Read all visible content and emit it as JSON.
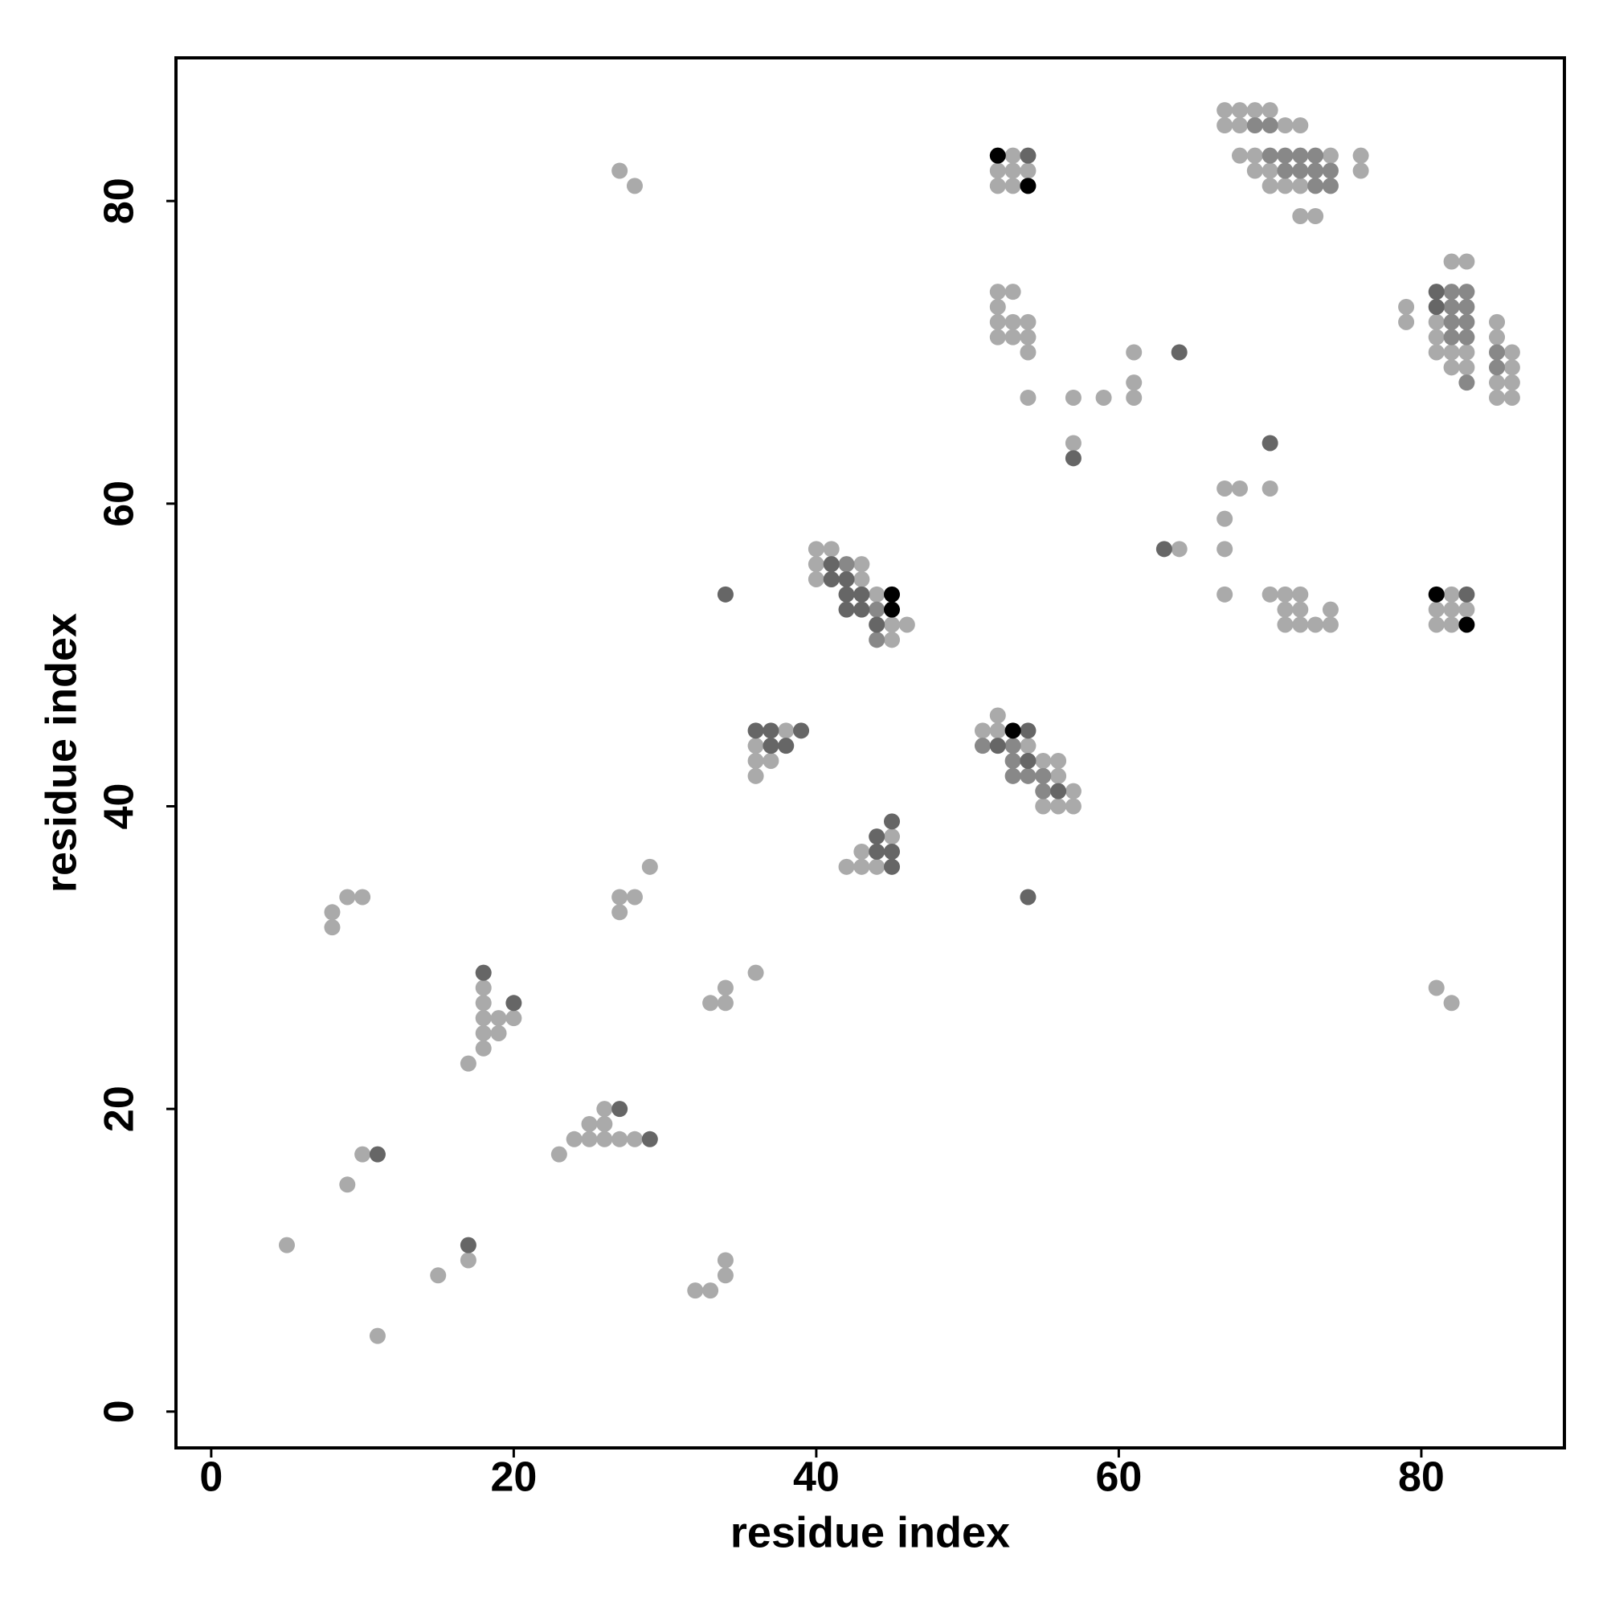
{
  "chart_data": {
    "type": "scatter",
    "x_label": "residue index",
    "y_label": "residue index",
    "xlim": [
      -2.33,
      89.46
    ],
    "ylim": [
      -2.4,
      89.46
    ],
    "xticks": [
      0,
      20,
      40,
      60,
      80
    ],
    "yticks": [
      0,
      20,
      40,
      60,
      80
    ],
    "series": [
      {
        "color": "#aaaaaa",
        "x": [
          5,
          11,
          15,
          17,
          9,
          10,
          8,
          8,
          9,
          10,
          17,
          18,
          18,
          18,
          19,
          18,
          19,
          18,
          20,
          23,
          24,
          25,
          26,
          27,
          28,
          25,
          26,
          26,
          27,
          28,
          27,
          28,
          27,
          29,
          33,
          34,
          34,
          36,
          32,
          33,
          34,
          34,
          38,
          36,
          36,
          37,
          36,
          40,
          41,
          40,
          43,
          40,
          43,
          44,
          45,
          46,
          45,
          45,
          42,
          43,
          43,
          44,
          52,
          51,
          52,
          54,
          55,
          56,
          56,
          57,
          55,
          56,
          57,
          53,
          52,
          53,
          54,
          52,
          53,
          52,
          53,
          52,
          52,
          53,
          54,
          52,
          53,
          54,
          54,
          54,
          57,
          59,
          61,
          61,
          61,
          57,
          64,
          67,
          68,
          70,
          67,
          67,
          67,
          70,
          71,
          72,
          71,
          72,
          74,
          71,
          72,
          73,
          74,
          67,
          68,
          69,
          70,
          67,
          68,
          71,
          72,
          68,
          69,
          74,
          76,
          69,
          70,
          76,
          70,
          71,
          72,
          72,
          73,
          82,
          83,
          79,
          79,
          81,
          85,
          81,
          85,
          81,
          82,
          83,
          86,
          82,
          83,
          86,
          85,
          86,
          85,
          86,
          82,
          81,
          82,
          83,
          81,
          82,
          81,
          82
        ],
        "y": [
          11,
          5,
          9,
          10,
          15,
          17,
          33,
          32,
          34,
          34,
          23,
          28,
          27,
          26,
          26,
          25,
          25,
          24,
          26,
          17,
          18,
          18,
          18,
          18,
          18,
          19,
          19,
          20,
          82,
          81,
          34,
          34,
          33,
          36,
          27,
          27,
          28,
          29,
          8,
          8,
          9,
          10,
          45,
          44,
          43,
          43,
          42,
          57,
          57,
          56,
          56,
          55,
          55,
          54,
          52,
          52,
          51,
          38,
          36,
          37,
          36,
          36,
          46,
          45,
          45,
          44,
          43,
          43,
          42,
          41,
          40,
          40,
          40,
          83,
          82,
          82,
          82,
          81,
          81,
          74,
          74,
          73,
          72,
          72,
          72,
          71,
          71,
          71,
          70,
          67,
          67,
          67,
          67,
          68,
          70,
          64,
          57,
          61,
          61,
          61,
          59,
          57,
          54,
          54,
          54,
          54,
          53,
          53,
          53,
          52,
          52,
          52,
          52,
          86,
          86,
          86,
          86,
          85,
          85,
          85,
          85,
          83,
          83,
          83,
          83,
          82,
          82,
          82,
          81,
          81,
          81,
          79,
          79,
          76,
          76,
          73,
          72,
          72,
          72,
          71,
          71,
          70,
          70,
          70,
          70,
          69,
          69,
          69,
          68,
          68,
          67,
          67,
          54,
          53,
          53,
          53,
          52,
          52,
          28,
          27
        ]
      },
      {
        "color": "#888888",
        "x": [
          42,
          44,
          44,
          51,
          53,
          53,
          53,
          54,
          55,
          55,
          69,
          70,
          70,
          71,
          72,
          73,
          71,
          72,
          73,
          74,
          73,
          74,
          82,
          83,
          82,
          83,
          82,
          83,
          82,
          83,
          85,
          85,
          83
        ],
        "y": [
          56,
          53,
          51,
          44,
          44,
          43,
          42,
          42,
          42,
          41,
          85,
          85,
          83,
          83,
          83,
          83,
          82,
          82,
          82,
          82,
          81,
          81,
          74,
          74,
          73,
          73,
          72,
          72,
          71,
          71,
          70,
          69,
          68
        ]
      },
      {
        "color": "#666666",
        "x": [
          17,
          11,
          18,
          20,
          29,
          27,
          34,
          36,
          37,
          39,
          37,
          38,
          41,
          41,
          42,
          42,
          43,
          42,
          43,
          44,
          45,
          44,
          44,
          45,
          45,
          54,
          52,
          54,
          56,
          54,
          54,
          64,
          57,
          63,
          70,
          81,
          81,
          83
        ],
        "y": [
          11,
          17,
          29,
          27,
          18,
          20,
          54,
          45,
          45,
          45,
          44,
          44,
          56,
          55,
          55,
          54,
          54,
          53,
          53,
          52,
          39,
          38,
          37,
          37,
          36,
          45,
          44,
          43,
          41,
          34,
          83,
          70,
          63,
          57,
          64,
          74,
          73,
          54
        ]
      },
      {
        "color": "#000000",
        "x": [
          45,
          45,
          53,
          52,
          54,
          81,
          83
        ],
        "y": [
          54,
          53,
          45,
          83,
          81,
          54,
          52
        ]
      }
    ]
  }
}
